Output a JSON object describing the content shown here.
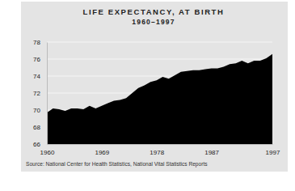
{
  "chart_data": {
    "type": "area",
    "title": "LIFE EXPECTANCY, AT BIRTH",
    "subtitle": "1960–1997",
    "source": "Source: National Center for Health Statistics, National Vital Statistics Reports",
    "x": [
      1960,
      1961,
      1962,
      1963,
      1964,
      1965,
      1966,
      1967,
      1968,
      1969,
      1970,
      1971,
      1972,
      1973,
      1974,
      1975,
      1976,
      1977,
      1978,
      1979,
      1980,
      1981,
      1982,
      1983,
      1984,
      1985,
      1986,
      1987,
      1988,
      1989,
      1990,
      1991,
      1992,
      1993,
      1994,
      1995,
      1996,
      1997
    ],
    "values": [
      69.7,
      70.2,
      70.1,
      69.9,
      70.2,
      70.2,
      70.1,
      70.5,
      70.2,
      70.5,
      70.8,
      71.1,
      71.2,
      71.4,
      72.0,
      72.6,
      72.9,
      73.3,
      73.5,
      73.9,
      73.7,
      74.1,
      74.5,
      74.6,
      74.7,
      74.7,
      74.8,
      74.9,
      74.9,
      75.1,
      75.4,
      75.5,
      75.8,
      75.5,
      75.8,
      75.8,
      76.1,
      76.6
    ],
    "color": "#000000",
    "xlim": [
      1960,
      1997
    ],
    "xticks": [
      1960,
      1969,
      1978,
      1987,
      1997
    ],
    "ylim": [
      66,
      78
    ],
    "yticks": [
      66,
      68,
      70,
      72,
      74,
      76,
      78
    ],
    "grid": true
  }
}
